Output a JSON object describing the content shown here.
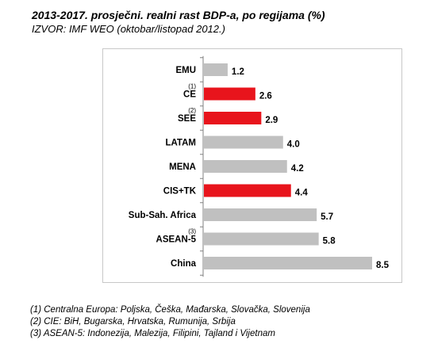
{
  "header": {
    "title": "2013-2017. prosječni. realni rast BDP-a, po regijama (%)",
    "source": "IZVOR: IMF WEO (oktobar/listopad 2012.)"
  },
  "chart_data": {
    "type": "bar",
    "orientation": "horizontal",
    "title": "",
    "xlabel": "",
    "ylabel": "",
    "grid": false,
    "legend": "none",
    "xlim": [
      0,
      8.5
    ],
    "categories": [
      "EMU",
      "CE",
      "SEE",
      "LATAM",
      "MENA",
      "CIS+TK",
      "Sub-Sah. Africa",
      "ASEAN-5",
      "China"
    ],
    "values": [
      1.2,
      2.6,
      2.9,
      4.0,
      4.2,
      4.4,
      5.7,
      5.8,
      8.5
    ],
    "value_labels": [
      "1.2",
      "2.6",
      "2.9",
      "4.0",
      "4.2",
      "4.4",
      "5.7",
      "5.8",
      "8.5"
    ],
    "note_marks": [
      "",
      "(1)",
      "(2)",
      "",
      "",
      "",
      "",
      "(3)",
      ""
    ],
    "highlighted": [
      false,
      true,
      true,
      false,
      false,
      true,
      false,
      false,
      false
    ],
    "colors": {
      "default": "#c0c0c0",
      "highlight": "#e8141c",
      "axis": "#808080"
    }
  },
  "footnotes": [
    "(1) Centralna  Europa:  Poljska,  Češka,  Mađarska,  Slovačka, Slovenija",
    "(2) CIE: BiH, Bugarska, Hrvatska, Rumunija,  Srbija",
    "(3) ASEAN-5:  Indonezija,  Malezija,  Filipini,  Tajland  i Vijetnam"
  ]
}
